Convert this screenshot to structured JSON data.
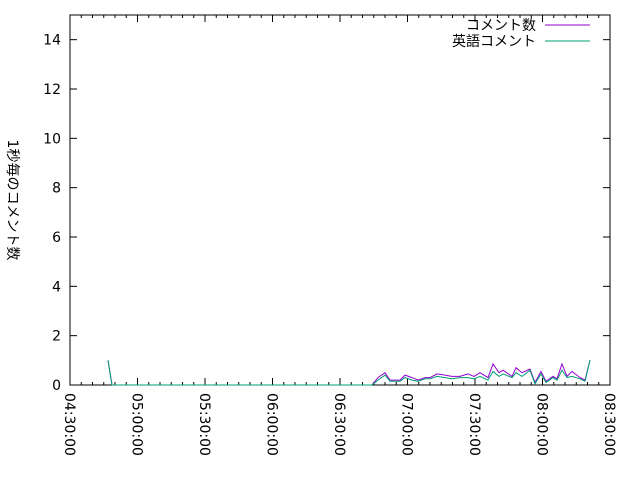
{
  "chart_data": {
    "type": "line",
    "title": "",
    "xlabel": "",
    "ylabel": "1秒毎のコメント数",
    "xlim": [
      "04:30:00",
      "08:30:00"
    ],
    "ylim": [
      0,
      15
    ],
    "xticks": [
      "04:30:00",
      "05:00:00",
      "05:30:00",
      "06:00:00",
      "06:30:00",
      "07:00:00",
      "07:30:00",
      "08:00:00",
      "08:30:00"
    ],
    "yticks": [
      "0",
      "2",
      "4",
      "6",
      "8",
      "10",
      "12",
      "14"
    ],
    "grid": false,
    "legend_position": "top-right",
    "x": [
      "04:46:53",
      "04:48:40",
      "06:42:24",
      "06:44:13",
      "06:46:53",
      "06:50:00",
      "06:52:13",
      "06:56:40",
      "06:58:53",
      "07:02:00",
      "07:04:40",
      "07:07:47",
      "07:10:00",
      "07:13:07",
      "07:16:40",
      "07:19:47",
      "07:23:20",
      "07:26:53",
      "07:29:33",
      "07:32:13",
      "07:35:47",
      "07:38:00",
      "07:40:40",
      "07:42:27",
      "07:46:27",
      "07:48:13",
      "07:50:53",
      "07:54:27",
      "07:56:40",
      "07:59:20",
      "08:01:33",
      "08:04:40",
      "08:06:27",
      "08:08:40",
      "08:10:53",
      "08:13:07",
      "08:16:40",
      "08:18:53",
      "08:21:07"
    ],
    "series": [
      {
        "name": "コメント数",
        "color": "#9400d3",
        "values": [
          1,
          0,
          0,
          0,
          0.3,
          0.5,
          0.2,
          0.2,
          0.4,
          0.3,
          0.2,
          0.3,
          0.3,
          0.45,
          0.4,
          0.35,
          0.35,
          0.45,
          0.35,
          0.5,
          0.3,
          0.85,
          0.5,
          0.6,
          0.35,
          0.7,
          0.5,
          0.65,
          0.1,
          0.55,
          0.15,
          0.35,
          0.25,
          0.85,
          0.35,
          0.55,
          0.3,
          0.2,
          1.0
        ]
      },
      {
        "name": "英語コメント",
        "color": "#009e73",
        "values": [
          1,
          0,
          0,
          0,
          0.2,
          0.4,
          0.15,
          0.15,
          0.3,
          0.2,
          0.15,
          0.25,
          0.25,
          0.35,
          0.3,
          0.25,
          0.3,
          0.3,
          0.25,
          0.35,
          0.2,
          0.55,
          0.35,
          0.45,
          0.3,
          0.5,
          0.35,
          0.6,
          0.05,
          0.45,
          0.1,
          0.3,
          0.2,
          0.6,
          0.3,
          0.35,
          0.25,
          0.15,
          1.0
        ]
      }
    ]
  }
}
